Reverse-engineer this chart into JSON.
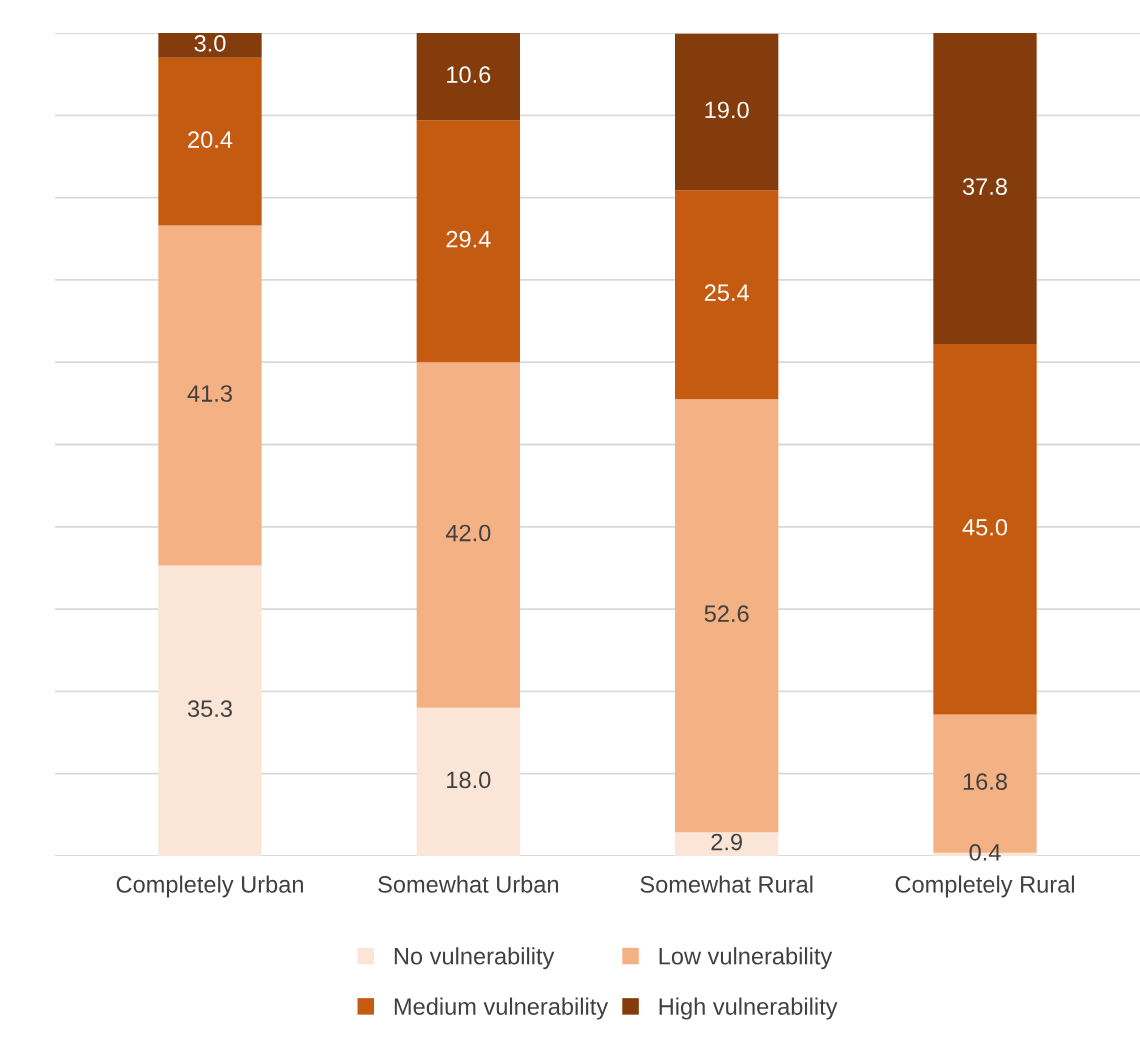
{
  "chart_data": {
    "type": "bar",
    "stacked": true,
    "categories": [
      "Completely Urban",
      "Somewhat Urban",
      "Somewhat Rural",
      "Completely Rural"
    ],
    "series": [
      {
        "name": "No vulnerability",
        "color": "#fbe5d6",
        "values": [
          35.3,
          18.0,
          2.9,
          0.4
        ],
        "value_labels": [
          "35.3",
          "18.0",
          "2.9",
          "0.4"
        ]
      },
      {
        "name": "Low vulnerability",
        "color": "#f4b183",
        "values": [
          41.3,
          42.0,
          52.6,
          16.8
        ],
        "value_labels": [
          "41.3",
          "42.0",
          "52.6",
          "16.8"
        ]
      },
      {
        "name": "Medium vulnerability",
        "color": "#c55a11",
        "values": [
          20.4,
          29.4,
          25.4,
          45.0
        ],
        "value_labels": [
          "20.4",
          "29.4",
          "25.4",
          "45.0"
        ]
      },
      {
        "name": "High vulnerability",
        "color": "#843c0c",
        "values": [
          3.0,
          10.6,
          19.0,
          37.8
        ],
        "value_labels": [
          "3.0",
          "10.6",
          "19.0",
          "37.8"
        ]
      }
    ],
    "ylim": [
      0,
      100
    ],
    "yticks": [
      {
        "value": 0,
        "label": null
      },
      {
        "value": 10,
        "label": null
      },
      {
        "value": 20,
        "label": null
      },
      {
        "value": 30,
        "label": null
      },
      {
        "value": 40,
        "label": null
      },
      {
        "value": 50,
        "label": null
      },
      {
        "value": 60,
        "label": null
      },
      {
        "value": 70,
        "label": null
      },
      {
        "value": 80,
        "label": null
      },
      {
        "value": 90,
        "label": null
      },
      {
        "value": 100,
        "label": null
      }
    ],
    "tick_labels": "x",
    "grid": "y",
    "legend": "bottom"
  }
}
